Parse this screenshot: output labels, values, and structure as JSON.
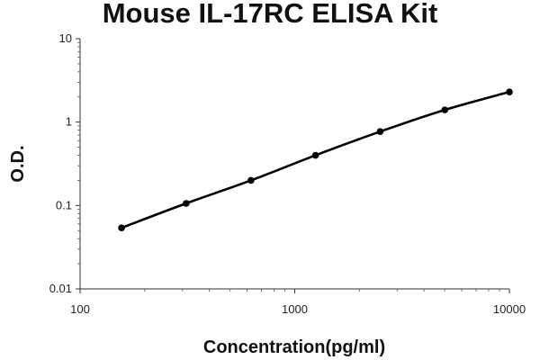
{
  "chart_data": {
    "type": "line",
    "title": "Mouse IL-17RC ELISA Kit",
    "xlabel": "Concentration(pg/ml)",
    "ylabel": "O.D.",
    "x_scale": "log",
    "y_scale": "log",
    "xlim": [
      100,
      10000
    ],
    "ylim": [
      0.01,
      10
    ],
    "x_ticks": [
      "100",
      "1000",
      "10000"
    ],
    "y_ticks": [
      "0.01",
      "0.1",
      "1",
      "10"
    ],
    "grid": false,
    "legend": false,
    "series": [
      {
        "x": [
          156,
          312,
          625,
          1250,
          2500,
          5000,
          10000
        ],
        "y": [
          0.054,
          0.106,
          0.2,
          0.4,
          0.77,
          1.4,
          2.3
        ],
        "color": "#000000",
        "marker": "circle",
        "smooth": true
      }
    ]
  }
}
